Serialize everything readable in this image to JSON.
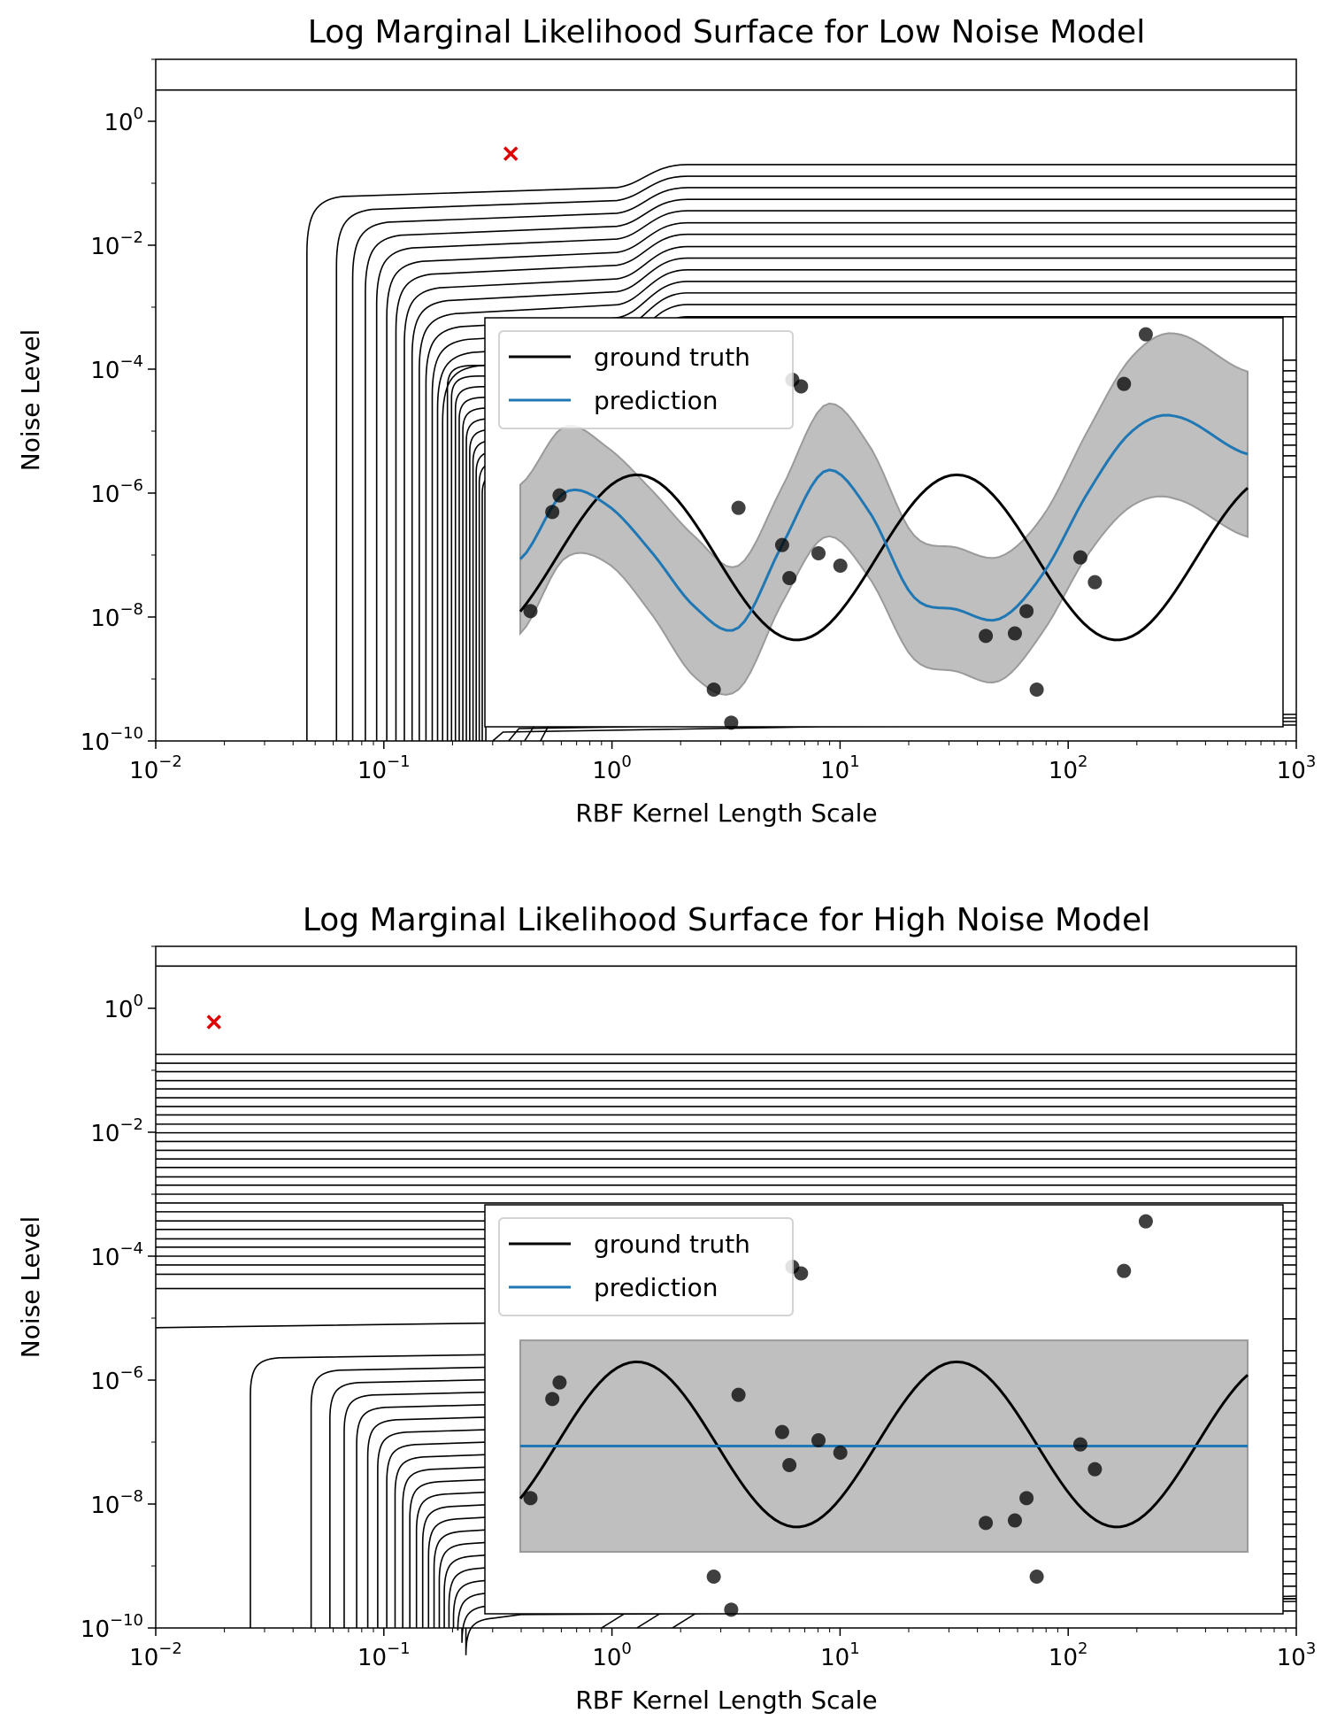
{
  "colors": {
    "contour": "#000000",
    "optimum": "#e00000",
    "ground_truth": "#000000",
    "prediction": "#1f77b4",
    "band": "#bfbfbf",
    "band_edge": "#9a9a9a",
    "points": "#404040"
  },
  "tick_base": "10",
  "chart_data": [
    {
      "type": "contour",
      "title": "Log Marginal Likelihood Surface for Low Noise Model",
      "xlabel": "RBF Kernel Length Scale",
      "ylabel": "Noise Level",
      "x_scale": "log",
      "y_scale": "log",
      "xlim": [
        0.01,
        1000
      ],
      "ylim": [
        1e-10,
        10
      ],
      "x_ticks": [
        {
          "value": 0.01,
          "exp": "−2"
        },
        {
          "value": 0.1,
          "exp": "−1"
        },
        {
          "value": 1,
          "exp": "0"
        },
        {
          "value": 10,
          "exp": "1"
        },
        {
          "value": 100,
          "exp": "2"
        },
        {
          "value": 1000,
          "exp": "3"
        }
      ],
      "y_ticks": [
        {
          "value": 1e-10,
          "exp": "−10"
        },
        {
          "value": 1e-08,
          "exp": "−8"
        },
        {
          "value": 1e-06,
          "exp": "−6"
        },
        {
          "value": 0.0001,
          "exp": "−4"
        },
        {
          "value": 0.01,
          "exp": "−2"
        },
        {
          "value": 1,
          "exp": "0"
        }
      ],
      "optimum": {
        "x": 0.36,
        "y": 0.3
      },
      "contours": {
        "style": "low",
        "top_level_y": 3.2,
        "horizontal_levels_y": [
          0.2,
          0.13,
          0.085,
          0.055,
          0.036,
          0.023,
          0.015,
          0.0095,
          0.0062,
          0.004,
          0.0026,
          0.0017,
          0.0011,
          0.0007
        ],
        "vertical_levels_x": [
          0.046,
          0.062,
          0.073,
          0.083,
          0.093,
          0.103,
          0.113,
          0.123,
          0.133,
          0.143,
          0.153,
          0.163,
          0.172,
          0.181,
          0.19,
          0.198,
          0.206,
          0.214,
          0.222,
          0.23,
          0.238,
          0.246,
          0.254,
          0.262,
          0.27,
          0.28
        ]
      },
      "inset": {
        "legend": [
          "ground truth",
          "prediction"
        ],
        "x_domain": [
          0,
          5
        ],
        "y_range": [
          -2.05,
          2.9
        ],
        "data_points": [
          {
            "x": 0.07,
            "y": -0.65
          },
          {
            "x": 0.22,
            "y": 0.55
          },
          {
            "x": 0.27,
            "y": 0.75
          },
          {
            "x": 1.33,
            "y": -1.6
          },
          {
            "x": 1.45,
            "y": -2.0
          },
          {
            "x": 1.5,
            "y": 0.6
          },
          {
            "x": 1.8,
            "y": 0.15
          },
          {
            "x": 1.85,
            "y": -0.25
          },
          {
            "x": 1.87,
            "y": 2.15
          },
          {
            "x": 1.93,
            "y": 2.07
          },
          {
            "x": 2.05,
            "y": 0.05
          },
          {
            "x": 2.2,
            "y": -0.1
          },
          {
            "x": 3.2,
            "y": -0.95
          },
          {
            "x": 3.4,
            "y": -0.92
          },
          {
            "x": 3.48,
            "y": -0.65
          },
          {
            "x": 3.55,
            "y": -1.6
          },
          {
            "x": 3.85,
            "y": 0.0
          },
          {
            "x": 3.95,
            "y": -0.3
          },
          {
            "x": 4.15,
            "y": 2.1
          },
          {
            "x": 4.3,
            "y": 2.7
          }
        ],
        "ground_truth": {
          "x_start": 0.0,
          "x_end": 5.0,
          "amplitude": 1.0,
          "period": 2.2,
          "phase": -0.25
        },
        "prediction": {
          "x": [
            0.0,
            0.3,
            0.6,
            0.9,
            1.2,
            1.5,
            1.8,
            2.1,
            2.4,
            2.7,
            3.0,
            3.3,
            3.6,
            3.9,
            4.2,
            4.5,
            5.0
          ],
          "y": [
            -0.02,
            0.78,
            0.63,
            0.07,
            -0.6,
            -0.85,
            0.15,
            1.05,
            0.55,
            -0.47,
            -0.63,
            -0.74,
            -0.18,
            0.78,
            1.52,
            1.71,
            1.25
          ],
          "std": [
            0.9,
            0.8,
            0.7,
            0.75,
            0.85,
            0.75,
            0.7,
            0.8,
            0.8,
            0.75,
            0.75,
            0.75,
            0.7,
            0.75,
            0.9,
            1.0,
            1.0
          ]
        }
      }
    },
    {
      "type": "contour",
      "title": "Log Marginal Likelihood Surface for High Noise Model",
      "xlabel": "RBF Kernel Length Scale",
      "ylabel": "Noise Level",
      "x_scale": "log",
      "y_scale": "log",
      "xlim": [
        0.01,
        1000
      ],
      "ylim": [
        1e-10,
        10
      ],
      "x_ticks": [
        {
          "value": 0.01,
          "exp": "−2"
        },
        {
          "value": 0.1,
          "exp": "−1"
        },
        {
          "value": 1,
          "exp": "0"
        },
        {
          "value": 10,
          "exp": "1"
        },
        {
          "value": 100,
          "exp": "2"
        },
        {
          "value": 1000,
          "exp": "3"
        }
      ],
      "y_ticks": [
        {
          "value": 1e-10,
          "exp": "−10"
        },
        {
          "value": 1e-08,
          "exp": "−8"
        },
        {
          "value": 1e-06,
          "exp": "−6"
        },
        {
          "value": 0.0001,
          "exp": "−4"
        },
        {
          "value": 0.01,
          "exp": "−2"
        },
        {
          "value": 1,
          "exp": "0"
        }
      ],
      "optimum": {
        "x": 0.018,
        "y": 0.6
      },
      "contours": {
        "style": "high",
        "top_level_y": 4.8,
        "horizontal_levels_y": [
          0.18,
          0.13,
          0.095,
          0.068,
          0.05,
          0.036,
          0.026,
          0.019,
          0.0135,
          0.0098,
          0.0071,
          0.0051,
          0.0037,
          0.0027,
          0.0019,
          0.0014,
          0.001,
          0.00072,
          0.00052,
          0.00037,
          0.00027,
          0.00019,
          0.00014,
          0.0001,
          7.2e-05,
          5.1e-05,
          3e-05
        ],
        "drop_level_y": 8e-06,
        "vertical_levels_x": [
          0.026,
          0.048,
          0.058,
          0.067,
          0.076,
          0.085,
          0.094,
          0.103,
          0.112,
          0.121,
          0.13,
          0.139,
          0.148,
          0.157,
          0.166,
          0.175,
          0.184,
          0.193,
          0.202,
          0.211,
          0.22,
          0.229
        ]
      },
      "inset": {
        "legend": [
          "ground truth",
          "prediction"
        ],
        "x_domain": [
          0,
          5
        ],
        "y_range": [
          -2.05,
          2.9
        ],
        "data_points": [
          {
            "x": 0.07,
            "y": -0.65
          },
          {
            "x": 0.22,
            "y": 0.55
          },
          {
            "x": 0.27,
            "y": 0.75
          },
          {
            "x": 1.33,
            "y": -1.6
          },
          {
            "x": 1.45,
            "y": -2.0
          },
          {
            "x": 1.5,
            "y": 0.6
          },
          {
            "x": 1.8,
            "y": 0.15
          },
          {
            "x": 1.85,
            "y": -0.25
          },
          {
            "x": 1.87,
            "y": 2.15
          },
          {
            "x": 1.93,
            "y": 2.07
          },
          {
            "x": 2.05,
            "y": 0.05
          },
          {
            "x": 2.2,
            "y": -0.1
          },
          {
            "x": 3.2,
            "y": -0.95
          },
          {
            "x": 3.4,
            "y": -0.92
          },
          {
            "x": 3.48,
            "y": -0.65
          },
          {
            "x": 3.55,
            "y": -1.6
          },
          {
            "x": 3.85,
            "y": 0.0
          },
          {
            "x": 3.95,
            "y": -0.3
          },
          {
            "x": 4.15,
            "y": 2.1
          },
          {
            "x": 4.3,
            "y": 2.7
          }
        ],
        "ground_truth": {
          "x_start": 0.0,
          "x_end": 5.0,
          "amplitude": 1.0,
          "period": 2.2,
          "phase": -0.25
        },
        "prediction": {
          "x": [
            0.0,
            5.0
          ],
          "y": [
            -0.02,
            -0.02
          ],
          "std": [
            1.28,
            1.28
          ]
        }
      }
    }
  ]
}
